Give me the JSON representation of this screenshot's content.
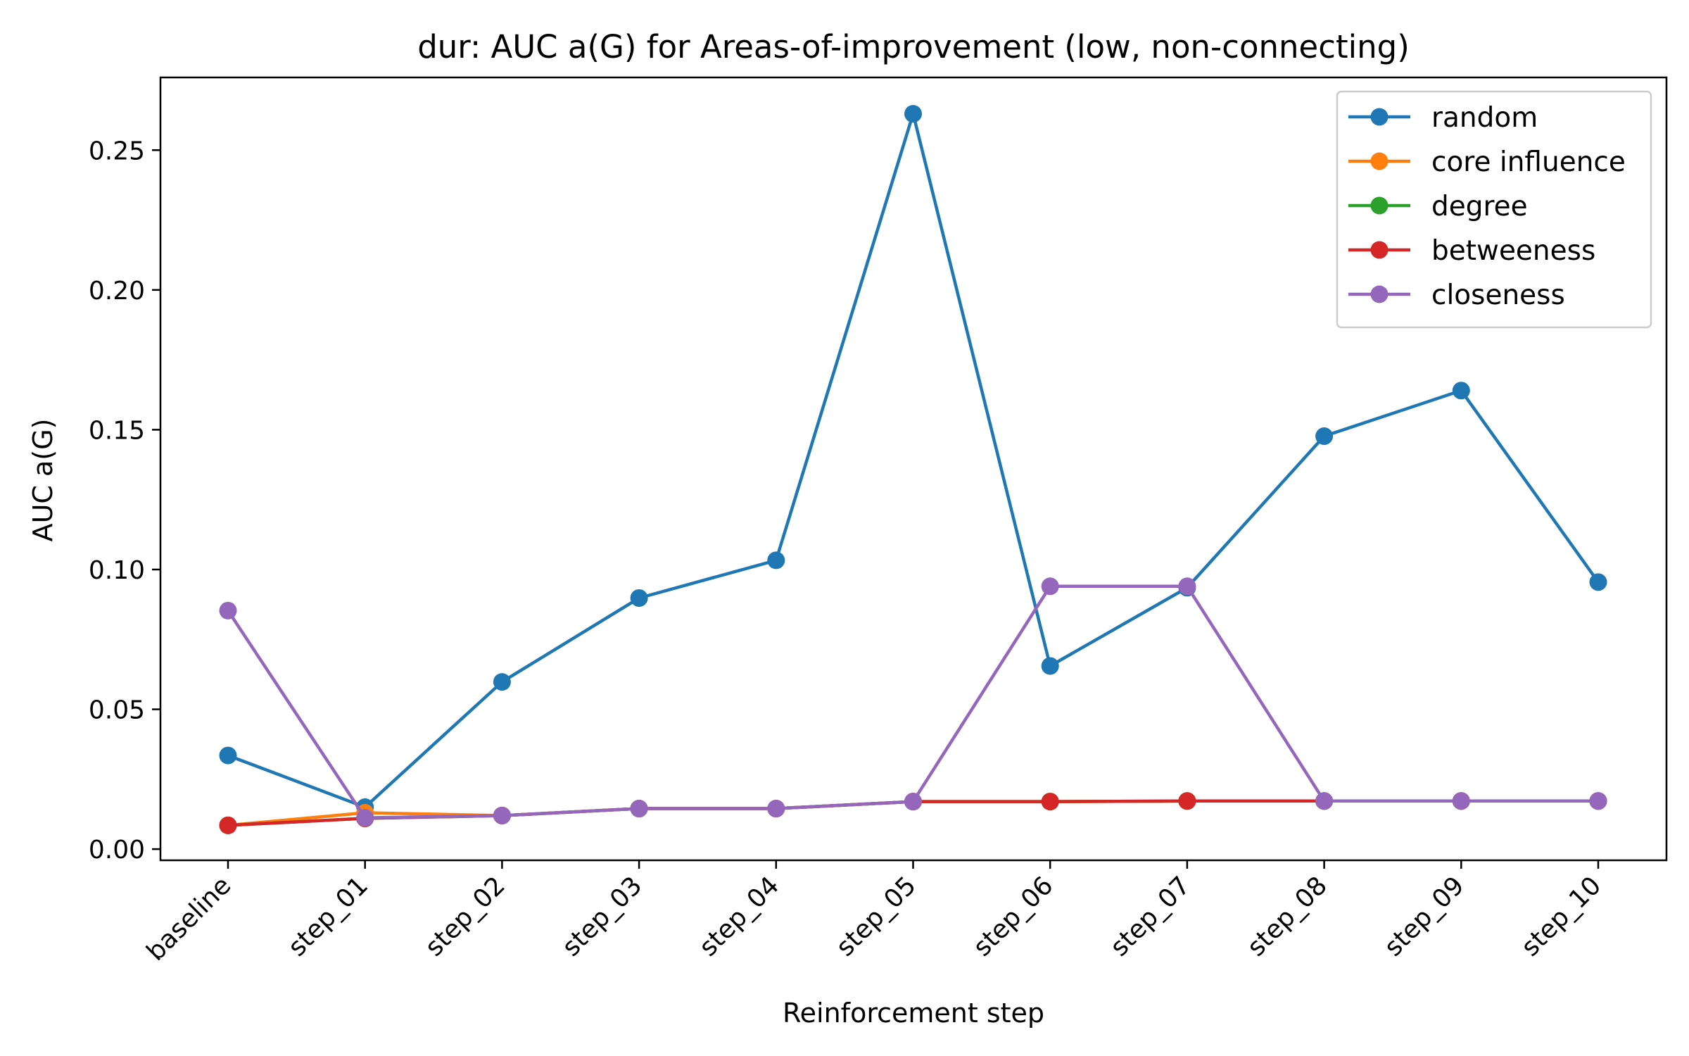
{
  "chart_data": {
    "type": "line",
    "title": "dur: AUC a(G) for Areas-of-improvement (low, non-connecting)",
    "xlabel": "Reinforcement step",
    "ylabel": "AUC a(G)",
    "categories": [
      "baseline",
      "step_01",
      "step_02",
      "step_03",
      "step_04",
      "step_05",
      "step_06",
      "step_07",
      "step_08",
      "step_09",
      "step_10"
    ],
    "ylim": [
      -0.004,
      0.276
    ],
    "yticks": [
      "0.00",
      "0.05",
      "0.10",
      "0.15",
      "0.20",
      "0.25"
    ],
    "ytick_values": [
      0.0,
      0.05,
      0.1,
      0.15,
      0.2,
      0.25
    ],
    "grid": false,
    "legend_position": "top-right",
    "series": [
      {
        "name": "random",
        "color": "#1f77b4",
        "values": [
          0.0335,
          0.015,
          0.0598,
          0.0898,
          0.1033,
          0.263,
          0.0655,
          0.0935,
          0.1477,
          0.164,
          0.0955
        ]
      },
      {
        "name": "core influence",
        "color": "#ff7f0e",
        "values": [
          0.0085,
          0.013,
          0.012,
          0.0145,
          0.0145,
          0.017,
          0.017,
          0.0172,
          0.0172,
          0.0172,
          0.0172
        ]
      },
      {
        "name": "degree",
        "color": "#2ca02c",
        "values": [
          0.0085,
          0.011,
          0.012,
          0.0145,
          0.0145,
          0.017,
          0.017,
          0.0172,
          0.0172,
          0.0172,
          0.0172
        ]
      },
      {
        "name": "betweeness",
        "color": "#d62728",
        "values": [
          0.0085,
          0.011,
          0.012,
          0.0145,
          0.0145,
          0.017,
          0.017,
          0.0172,
          0.0172,
          0.0172,
          0.0172
        ]
      },
      {
        "name": "closeness",
        "color": "#9467bd",
        "values": [
          0.0853,
          0.0112,
          0.012,
          0.0145,
          0.0145,
          0.017,
          0.094,
          0.094,
          0.0172,
          0.0172,
          0.0172
        ]
      }
    ]
  }
}
